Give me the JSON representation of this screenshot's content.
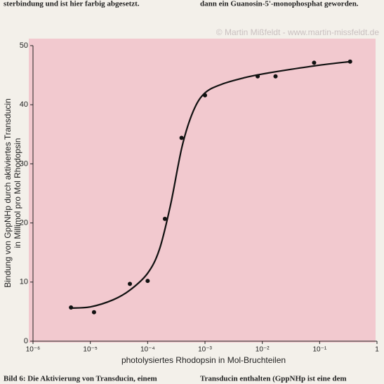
{
  "page": {
    "header": [
      "sterbindung und ist hier farbig abgesetzt.",
      "dann ein Guanosin-5'-monophosphat geworden."
    ],
    "watermark": "© Martin Mißfeldt - www.martin-missfeldt.de",
    "caption": [
      "Bild 6: Die Aktivierung von Transducin, einem",
      "Transducin enthalten (GppNHp ist eine dem"
    ]
  },
  "chart_data": {
    "type": "scatter",
    "x_label": "photolysiertes Rhodopsin in Mol-Bruchteilen",
    "y_label": [
      "Bindung von GppNHp durch aktiviertes Transducin",
      "in Millimol pro Mol Rhodopsin"
    ],
    "xscale": "log",
    "xlim": [
      1e-06,
      1
    ],
    "xticks": [
      {
        "value": 1e-06,
        "label": "10⁻⁶"
      },
      {
        "value": 1e-05,
        "label": "10⁻⁵"
      },
      {
        "value": 0.0001,
        "label": "10⁻⁴"
      },
      {
        "value": 0.001,
        "label": "10⁻³"
      },
      {
        "value": 0.01,
        "label": "10⁻²"
      },
      {
        "value": 0.1,
        "label": "10⁻¹"
      },
      1
    ],
    "ylim": [
      0,
      50
    ],
    "yticks": [
      0,
      10,
      20,
      30,
      40,
      50
    ],
    "background": "#f2c9cf",
    "series": [
      {
        "mode": "markers",
        "color": "#111111",
        "x": [
          4.6e-06,
          1.16e-05,
          4.9e-05,
          0.0001,
          0.0002,
          0.00039,
          0.001,
          0.0083,
          0.017,
          0.08,
          0.34
        ],
        "values": [
          5.7,
          4.9,
          9.7,
          10.2,
          20.7,
          34.4,
          41.6,
          44.8,
          44.8,
          47.1,
          47.3
        ]
      },
      {
        "mode": "line",
        "color": "#111111",
        "x": [
          4.6e-06,
          1e-05,
          2.5e-05,
          5e-05,
          0.0001,
          0.00016,
          0.00025,
          0.0004,
          0.00063,
          0.001,
          0.002,
          0.005,
          0.01,
          0.032,
          0.1,
          0.34
        ],
        "values": [
          5.6,
          5.8,
          7.0,
          8.7,
          11.5,
          15.5,
          23,
          33,
          39,
          42,
          43.5,
          44.6,
          45.2,
          46.0,
          46.7,
          47.3
        ]
      }
    ]
  }
}
